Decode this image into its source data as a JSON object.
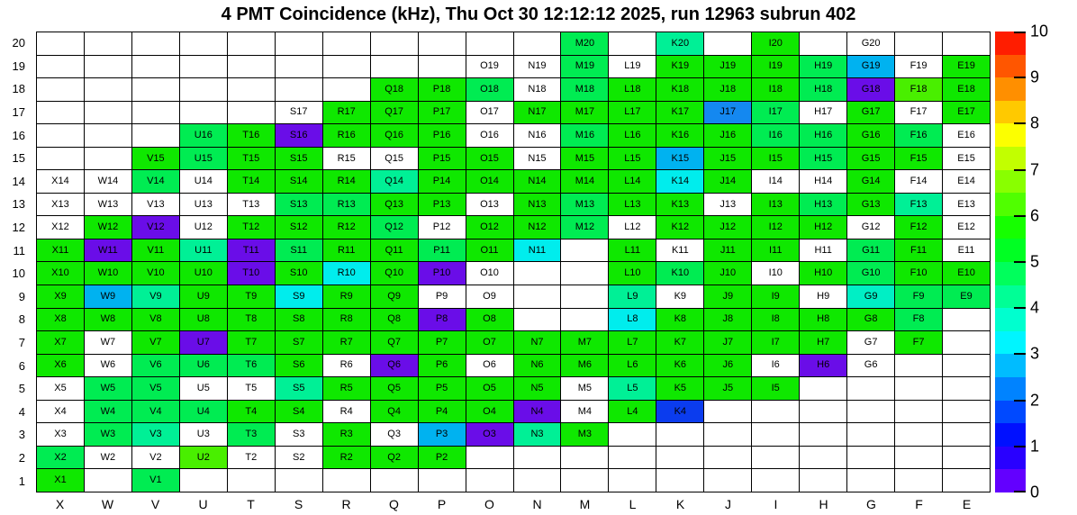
{
  "chart_data": {
    "type": "heatmap",
    "title": "4 PMT Coincidence (kHz), Thu Oct 30 12:12:12 2025, run 12963 subrun 402",
    "x_categories": [
      "X",
      "W",
      "V",
      "U",
      "T",
      "S",
      "R",
      "Q",
      "P",
      "O",
      "N",
      "M",
      "L",
      "K",
      "J",
      "I",
      "H",
      "G",
      "F",
      "E"
    ],
    "y_categories": [
      "20",
      "19",
      "18",
      "17",
      "16",
      "15",
      "14",
      "13",
      "12",
      "11",
      "10",
      "9",
      "8",
      "7",
      "6",
      "5",
      "4",
      "3",
      "2",
      "1"
    ],
    "cell_label_format": "column letter + row number, shown only for instrumented channels",
    "legend": {
      "position": "right",
      "min": 0,
      "max": 10,
      "tick_labels": [
        "0",
        "1",
        "2",
        "3",
        "4",
        "5",
        "6",
        "7",
        "8",
        "9",
        "10"
      ]
    },
    "color_classes": {
      "w": {
        "name": "white-zero",
        "hex": "#FFFFFF",
        "approx_value": 0
      },
      "p": {
        "name": "violet",
        "hex": "#6A0DE8",
        "approx_value": 0.3
      },
      "B": {
        "name": "deep-blue",
        "hex": "#0B3CEE",
        "approx_value": 1.6
      },
      "b": {
        "name": "blue",
        "hex": "#1488F0",
        "approx_value": 2.4
      },
      "s": {
        "name": "sky-blue",
        "hex": "#00B2F0",
        "approx_value": 2.8
      },
      "c": {
        "name": "cyan",
        "hex": "#00EDED",
        "approx_value": 3.3
      },
      "q": {
        "name": "turquoise",
        "hex": "#00EFC5",
        "approx_value": 3.7
      },
      "m": {
        "name": "mint-green",
        "hex": "#00F096",
        "approx_value": 4.2
      },
      "t": {
        "name": "spring-green",
        "hex": "#00EC52",
        "approx_value": 4.8
      },
      "g": {
        "name": "green",
        "hex": "#0FE800",
        "approx_value": 5.7
      },
      "y": {
        "name": "yellow-green",
        "hex": "#49EF00",
        "approx_value": 6.5
      }
    },
    "rows": [
      {
        "y": "20",
        "cells": [
          ".",
          ".",
          ".",
          ".",
          ".",
          ".",
          ".",
          ".",
          ".",
          ".",
          ".",
          "t",
          ".",
          "m",
          ".",
          "g",
          ".",
          "w",
          ".",
          "."
        ]
      },
      {
        "y": "19",
        "cells": [
          ".",
          ".",
          ".",
          ".",
          ".",
          ".",
          ".",
          ".",
          ".",
          "w",
          "w",
          "t",
          "w",
          "g",
          "g",
          "g",
          "t",
          "s",
          "w",
          "g"
        ]
      },
      {
        "y": "18",
        "cells": [
          ".",
          ".",
          ".",
          ".",
          ".",
          ".",
          ".",
          "g",
          "g",
          "t",
          "w",
          "t",
          "g",
          "g",
          "g",
          "g",
          "t",
          "p",
          "y",
          "g"
        ]
      },
      {
        "y": "17",
        "cells": [
          ".",
          ".",
          ".",
          ".",
          ".",
          "w",
          "g",
          "g",
          "g",
          "w",
          "g",
          "g",
          "g",
          "g",
          "b",
          "t",
          "w",
          "g",
          "w",
          "g"
        ]
      },
      {
        "y": "16",
        "cells": [
          ".",
          ".",
          ".",
          "t",
          "g",
          "p",
          "g",
          "g",
          "g",
          "w",
          "w",
          "t",
          "g",
          "g",
          "g",
          "t",
          "t",
          "g",
          "t",
          "w"
        ]
      },
      {
        "y": "15",
        "cells": [
          ".",
          ".",
          "g",
          "t",
          "g",
          "g",
          "w",
          "w",
          "g",
          "g",
          "w",
          "g",
          "g",
          "s",
          "g",
          "g",
          "t",
          "g",
          "g",
          "w"
        ]
      },
      {
        "y": "14",
        "cells": [
          "w",
          "w",
          "t",
          "w",
          "g",
          "g",
          "g",
          "m",
          "g",
          "g",
          "g",
          "g",
          "g",
          "c",
          "g",
          "w",
          "w",
          "g",
          "w",
          "w"
        ]
      },
      {
        "y": "13",
        "cells": [
          "w",
          "w",
          "w",
          "w",
          "w",
          "t",
          "t",
          "g",
          "g",
          "w",
          "g",
          "t",
          "g",
          "g",
          "w",
          "g",
          "t",
          "g",
          "m",
          "w"
        ]
      },
      {
        "y": "12",
        "cells": [
          "w",
          "g",
          "p",
          "w",
          "g",
          "g",
          "g",
          "t",
          "w",
          "g",
          "g",
          "t",
          "w",
          "g",
          "g",
          "g",
          "g",
          "w",
          "g",
          "w"
        ]
      },
      {
        "y": "11",
        "cells": [
          "g",
          "p",
          "g",
          "m",
          "p",
          "t",
          "g",
          "g",
          "t",
          "g",
          "c",
          ".",
          "g",
          "w",
          "g",
          "g",
          "w",
          "t",
          "g",
          "w"
        ]
      },
      {
        "y": "10",
        "cells": [
          "g",
          "g",
          "g",
          "g",
          "p",
          "g",
          "c",
          "g",
          "p",
          "w",
          ".",
          ".",
          "g",
          "t",
          "g",
          "w",
          "g",
          "t",
          "g",
          "g"
        ]
      },
      {
        "y": "9",
        "cells": [
          "g",
          "s",
          "m",
          "g",
          "g",
          "c",
          "g",
          "g",
          "w",
          "w",
          ".",
          ".",
          "m",
          "w",
          "g",
          "g",
          "w",
          "q",
          "t",
          "t"
        ]
      },
      {
        "y": "8",
        "cells": [
          "g",
          "g",
          "g",
          "g",
          "g",
          "g",
          "g",
          "g",
          "p",
          "g",
          ".",
          ".",
          "c",
          "g",
          "g",
          "g",
          "g",
          "g",
          "t",
          "."
        ]
      },
      {
        "y": "7",
        "cells": [
          "g",
          "w",
          "g",
          "p",
          "g",
          "g",
          "g",
          "g",
          "g",
          "g",
          "g",
          "g",
          "g",
          "g",
          "g",
          "g",
          "g",
          "w",
          "g",
          "."
        ]
      },
      {
        "y": "6",
        "cells": [
          "g",
          "w",
          "t",
          "t",
          "t",
          "g",
          "w",
          "p",
          "g",
          "w",
          "g",
          "g",
          "g",
          "g",
          "g",
          "w",
          "p",
          "w",
          ".",
          "."
        ]
      },
      {
        "y": "5",
        "cells": [
          "w",
          "t",
          "t",
          "w",
          "w",
          "m",
          "g",
          "g",
          "g",
          "g",
          "g",
          "w",
          "m",
          "g",
          "g",
          "g",
          ".",
          ".",
          ".",
          "."
        ]
      },
      {
        "y": "4",
        "cells": [
          "w",
          "t",
          "t",
          "t",
          "g",
          "g",
          "w",
          "g",
          "g",
          "g",
          "p",
          "w",
          "g",
          "B",
          ".",
          ".",
          ".",
          ".",
          ".",
          "."
        ]
      },
      {
        "y": "3",
        "cells": [
          "w",
          "t",
          "m",
          "w",
          "t",
          "w",
          "g",
          "w",
          "s",
          "p",
          "m",
          "g",
          ".",
          ".",
          ".",
          ".",
          ".",
          ".",
          ".",
          "."
        ]
      },
      {
        "y": "2",
        "cells": [
          "t",
          "w",
          "w",
          "y",
          "w",
          "w",
          "g",
          "g",
          "g",
          ".",
          ".",
          ".",
          ".",
          ".",
          ".",
          ".",
          ".",
          ".",
          ".",
          "."
        ]
      },
      {
        "y": "1",
        "cells": [
          "g",
          ".",
          "t",
          ".",
          ".",
          ".",
          ".",
          ".",
          ".",
          ".",
          ".",
          ".",
          ".",
          ".",
          ".",
          ".",
          ".",
          ".",
          ".",
          "."
        ]
      }
    ],
    "colorbar_bands_bottom_to_top": [
      "#6300FF",
      "#2900FF",
      "#0010FF",
      "#0049FF",
      "#0083FF",
      "#00BCFF",
      "#00F5FF",
      "#00FFCF",
      "#00FF96",
      "#00FF5C",
      "#00FF23",
      "#16FF00",
      "#50FF00",
      "#89FF00",
      "#C2FF00",
      "#FCFF00",
      "#FFC900",
      "#FF8F00",
      "#FF5600",
      "#FF1D00"
    ],
    "grid_lines": "on",
    "axis_note": "x axis letters X..E left-to-right, y axis rows 20 (top) to 1 (bottom)"
  }
}
